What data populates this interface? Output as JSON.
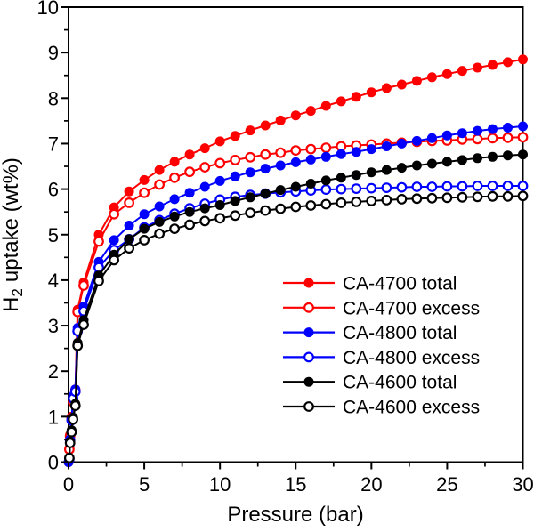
{
  "figure": {
    "background": "#ffffff",
    "frame_color": "#000000"
  },
  "chart_data": {
    "type": "line",
    "title": "",
    "xlabel": "Pressure (bar)",
    "ylabel": "H2 uptake (wt%)",
    "ylabel_parts": {
      "base": "H",
      "sub": "2",
      "rest": "uptake (wt%)"
    },
    "xlim": [
      0,
      30
    ],
    "ylim": [
      0,
      10
    ],
    "grid": false,
    "legend_position": "inside-right-middle",
    "x_ticks": [
      0,
      5,
      10,
      15,
      20,
      25,
      30
    ],
    "x_tick_labels": [
      "0",
      "5",
      "10",
      "15",
      "20",
      "25",
      "30"
    ],
    "x_minor_ticks": [
      2.5,
      7.5,
      12.5,
      17.5,
      22.5,
      27.5
    ],
    "y_ticks": [
      0,
      1,
      2,
      3,
      4,
      5,
      6,
      7,
      8,
      9,
      10
    ],
    "y_tick_labels": [
      "0",
      "1",
      "2",
      "3",
      "4",
      "5",
      "6",
      "7",
      "8",
      "9",
      "10"
    ],
    "y_minor_ticks": [
      0.5,
      1.5,
      2.5,
      3.5,
      4.5,
      5.5,
      6.5,
      7.5,
      8.5,
      9.5
    ],
    "x": [
      0,
      0.05,
      0.1,
      0.2,
      0.3,
      0.45,
      0.6,
      1,
      2,
      3,
      4,
      5,
      6,
      7,
      8,
      9,
      10,
      11,
      12,
      13,
      14,
      15,
      16,
      17,
      18,
      19,
      20,
      21,
      22,
      23,
      24,
      25,
      26,
      27,
      28,
      29,
      30
    ],
    "series": [
      {
        "name": "CA-4700 total",
        "color": "#ff0000",
        "marker": "filled",
        "values": [
          0,
          0.3,
          0.6,
          1.0,
          1.35,
          1.6,
          3.35,
          3.95,
          5.0,
          5.6,
          5.95,
          6.2,
          6.42,
          6.6,
          6.76,
          6.9,
          7.05,
          7.17,
          7.29,
          7.4,
          7.51,
          7.62,
          7.72,
          7.83,
          7.93,
          8.03,
          8.13,
          8.22,
          8.3,
          8.38,
          8.46,
          8.53,
          8.6,
          8.67,
          8.73,
          8.79,
          8.85
        ]
      },
      {
        "name": "CA-4700 excess",
        "color": "#ff0000",
        "marker": "open",
        "values": [
          null,
          0.28,
          0.57,
          0.97,
          1.32,
          1.57,
          3.3,
          3.88,
          4.85,
          5.45,
          5.7,
          5.92,
          6.1,
          6.25,
          6.38,
          6.48,
          6.57,
          6.64,
          6.7,
          6.76,
          6.8,
          6.85,
          6.88,
          6.91,
          6.94,
          6.96,
          6.98,
          7.0,
          7.02,
          7.04,
          7.06,
          7.07,
          7.09,
          7.1,
          7.12,
          7.13,
          7.14
        ]
      },
      {
        "name": "CA-4800 total",
        "color": "#0000ff",
        "marker": "filled",
        "values": [
          0,
          0.08,
          0.5,
          0.95,
          1.45,
          1.6,
          2.95,
          3.42,
          4.4,
          4.88,
          5.2,
          5.45,
          5.62,
          5.78,
          5.92,
          6.05,
          6.18,
          6.28,
          6.37,
          6.45,
          6.52,
          6.59,
          6.65,
          6.71,
          6.77,
          6.82,
          6.88,
          6.94,
          7.0,
          7.06,
          7.12,
          7.18,
          7.23,
          7.28,
          7.32,
          7.35,
          7.38
        ]
      },
      {
        "name": "CA-4800 excess",
        "color": "#0000ff",
        "marker": "open",
        "values": [
          null,
          0.07,
          0.48,
          0.92,
          1.4,
          1.55,
          2.88,
          3.32,
          4.28,
          4.66,
          4.9,
          5.16,
          5.32,
          5.46,
          5.58,
          5.68,
          5.77,
          5.83,
          5.87,
          5.9,
          5.93,
          5.95,
          5.97,
          5.99,
          6.0,
          6.01,
          6.02,
          6.03,
          6.04,
          6.05,
          6.05,
          6.06,
          6.06,
          6.07,
          6.07,
          6.07,
          6.07
        ]
      },
      {
        "name": "CA-4600 total",
        "color": "#000000",
        "marker": "filled",
        "values": [
          null,
          0.1,
          0.45,
          0.7,
          0.98,
          1.28,
          2.62,
          3.12,
          4.1,
          4.56,
          4.9,
          5.13,
          5.28,
          5.4,
          5.5,
          5.58,
          5.65,
          5.74,
          5.82,
          5.9,
          5.98,
          6.05,
          6.12,
          6.19,
          6.25,
          6.31,
          6.37,
          6.42,
          6.47,
          6.52,
          6.56,
          6.6,
          6.64,
          6.68,
          6.71,
          6.74,
          6.76
        ]
      },
      {
        "name": "CA-4600 excess",
        "color": "#000000",
        "marker": "open",
        "values": [
          null,
          0.09,
          0.42,
          0.66,
          0.94,
          1.24,
          2.56,
          3.02,
          3.98,
          4.44,
          4.7,
          4.88,
          5.02,
          5.13,
          5.22,
          5.3,
          5.36,
          5.42,
          5.48,
          5.53,
          5.57,
          5.61,
          5.64,
          5.67,
          5.7,
          5.72,
          5.74,
          5.76,
          5.78,
          5.79,
          5.8,
          5.81,
          5.82,
          5.83,
          5.84,
          5.84,
          5.85
        ]
      }
    ]
  }
}
